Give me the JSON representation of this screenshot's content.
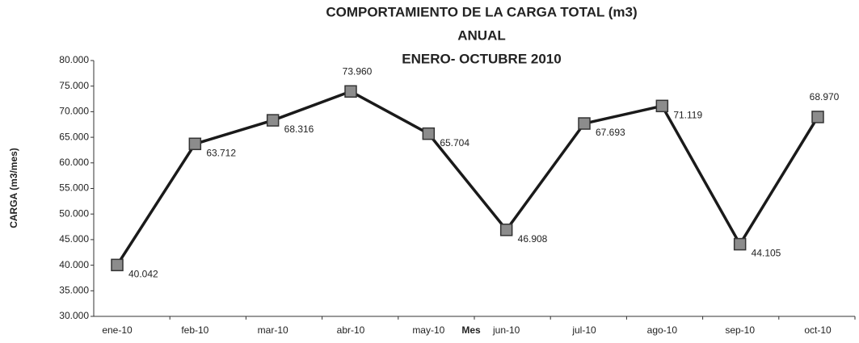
{
  "chart_data": {
    "type": "line",
    "title": [
      "COMPORTAMIENTO DE LA CARGA TOTAL (m3)",
      "ANUAL",
      "ENERO- OCTUBRE 2010"
    ],
    "y_label": "CARGA (m3/mes)",
    "x_label": "Mes",
    "categories": [
      "ene-10",
      "feb-10",
      "mar-10",
      "abr-10",
      "may-10",
      "jun-10",
      "jul-10",
      "ago-10",
      "sep-10",
      "oct-10"
    ],
    "series": [
      {
        "name": "CARGA",
        "color": "#1a1a1a",
        "values": [
          40042,
          63712,
          68316,
          73960,
          65704,
          46908,
          67693,
          71119,
          44105,
          68970
        ],
        "value_labels": [
          "40.042",
          "63.712",
          "68.316",
          "73.960",
          "65.704",
          "46.908",
          "67.693",
          "71.119",
          "44.105",
          "68.970"
        ]
      }
    ],
    "ylim": [
      30000,
      80000
    ],
    "yticks": [
      {
        "value": 30000,
        "label": "30.000"
      },
      {
        "value": 35000,
        "label": "35.000"
      },
      {
        "value": 40000,
        "label": "40.000"
      },
      {
        "value": 45000,
        "label": "45.000"
      },
      {
        "value": 50000,
        "label": "50.000"
      },
      {
        "value": 55000,
        "label": "55.000"
      },
      {
        "value": 60000,
        "label": "60.000"
      },
      {
        "value": 65000,
        "label": "65.000"
      },
      {
        "value": 70000,
        "label": "70.000"
      },
      {
        "value": 75000,
        "label": "75.000"
      },
      {
        "value": 80000,
        "label": "80.000"
      }
    ],
    "grid": false,
    "marker_color": "#8c8c8c"
  }
}
